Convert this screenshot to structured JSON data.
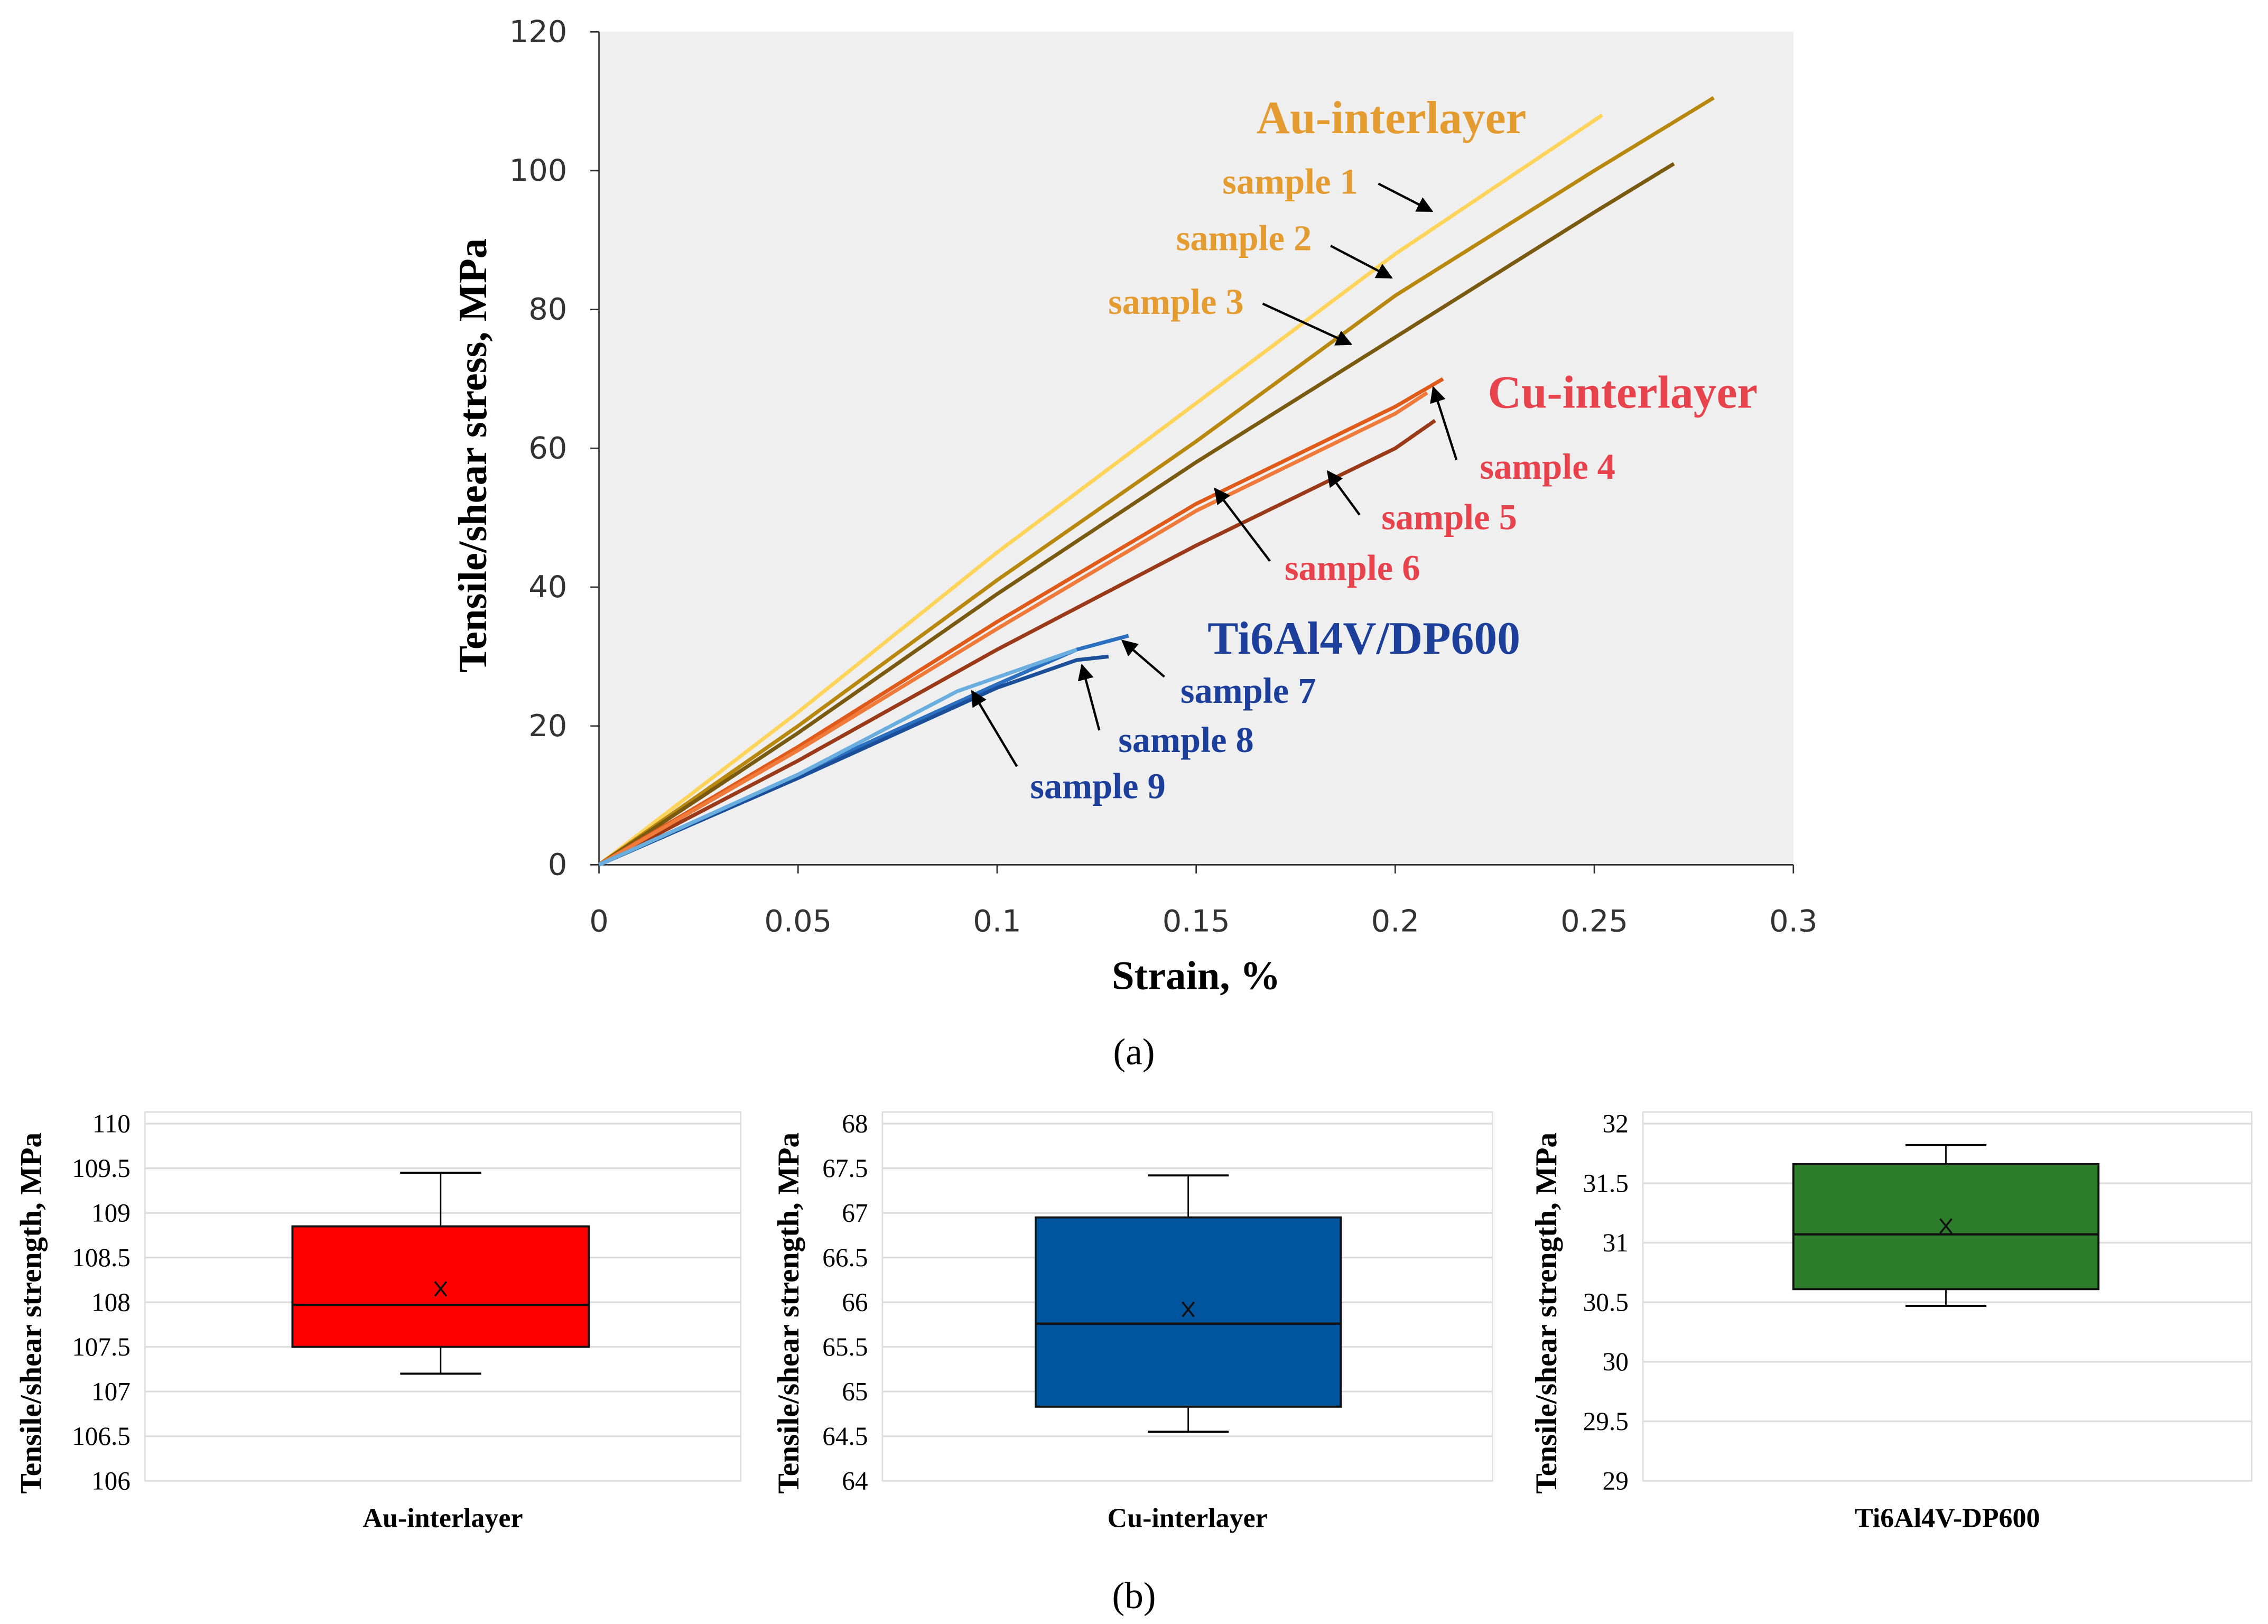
{
  "chart_data": [
    {
      "type": "line",
      "panel_label": "(a)",
      "xlabel": "Strain, %",
      "ylabel": "Tensile/shear stress, MPa",
      "xlim": [
        0,
        0.3
      ],
      "ylim": [
        0,
        120
      ],
      "xticks": [
        "0",
        "0.05",
        "0.1",
        "0.15",
        "0.2",
        "0.25",
        "0.3"
      ],
      "yticks": [
        "0",
        "20",
        "40",
        "60",
        "80",
        "100",
        "120"
      ],
      "grid": false,
      "groups": [
        {
          "name": "Au-interlayer",
          "color": "#e49b2f"
        },
        {
          "name": "Cu-interlayer",
          "color": "#e8424c"
        },
        {
          "name": "Ti6Al4V/DP600",
          "color": "#1d3f9c"
        }
      ],
      "series": [
        {
          "name": "sample 1",
          "group": "Au-interlayer",
          "color": "#ffd45a",
          "points": [
            [
              0,
              0
            ],
            [
              0.05,
              22
            ],
            [
              0.1,
              45
            ],
            [
              0.15,
              66.5
            ],
            [
              0.2,
              88
            ],
            [
              0.252,
              108
            ]
          ]
        },
        {
          "name": "sample 2",
          "group": "Au-interlayer",
          "color": "#b8880e",
          "points": [
            [
              0,
              0
            ],
            [
              0.05,
              20
            ],
            [
              0.1,
              41
            ],
            [
              0.15,
              61
            ],
            [
              0.2,
              82
            ],
            [
              0.25,
              100
            ],
            [
              0.28,
              110.5
            ]
          ]
        },
        {
          "name": "sample 3",
          "group": "Au-interlayer",
          "color": "#7a5a10",
          "points": [
            [
              0,
              0
            ],
            [
              0.05,
              19
            ],
            [
              0.1,
              39
            ],
            [
              0.15,
              58
            ],
            [
              0.2,
              76
            ],
            [
              0.25,
              94
            ],
            [
              0.27,
              101
            ]
          ]
        },
        {
          "name": "sample 4",
          "group": "Cu-interlayer",
          "color": "#e05a1a",
          "points": [
            [
              0,
              0
            ],
            [
              0.05,
              17
            ],
            [
              0.1,
              35
            ],
            [
              0.15,
              52
            ],
            [
              0.2,
              66
            ],
            [
              0.212,
              70
            ]
          ]
        },
        {
          "name": "sample 5",
          "group": "Cu-interlayer",
          "color": "#9a3a18",
          "points": [
            [
              0,
              0
            ],
            [
              0.05,
              15
            ],
            [
              0.1,
              31
            ],
            [
              0.15,
              46
            ],
            [
              0.2,
              60
            ],
            [
              0.21,
              64
            ]
          ]
        },
        {
          "name": "sample 6",
          "group": "Cu-interlayer",
          "color": "#f07a3a",
          "points": [
            [
              0,
              0
            ],
            [
              0.05,
              16.5
            ],
            [
              0.1,
              34
            ],
            [
              0.15,
              51
            ],
            [
              0.2,
              65
            ],
            [
              0.208,
              68
            ]
          ]
        },
        {
          "name": "sample 7",
          "group": "Ti6Al4V/DP600",
          "color": "#2a6fc0",
          "points": [
            [
              0,
              0
            ],
            [
              0.05,
              13
            ],
            [
              0.1,
              26
            ],
            [
              0.12,
              31
            ],
            [
              0.133,
              33
            ]
          ]
        },
        {
          "name": "sample 8",
          "group": "Ti6Al4V/DP600",
          "color": "#1b4f9a",
          "points": [
            [
              0,
              0
            ],
            [
              0.05,
              12.5
            ],
            [
              0.1,
              25.5
            ],
            [
              0.12,
              29.5
            ],
            [
              0.128,
              30
            ]
          ]
        },
        {
          "name": "sample 9",
          "group": "Ti6Al4V/DP600",
          "color": "#6aaee0",
          "points": [
            [
              0,
              0
            ],
            [
              0.05,
              13
            ],
            [
              0.09,
              25
            ],
            [
              0.12,
              31
            ]
          ]
        }
      ]
    },
    {
      "type": "box",
      "panel_label": "(b)",
      "ylabel": "Tensile/shear strength, MPa",
      "panels": [
        {
          "category": "Au-interlayer",
          "color": "#ff0000",
          "ylim": [
            106,
            110
          ],
          "yticks": [
            "106",
            "106.5",
            "107",
            "107.5",
            "108",
            "108.5",
            "109",
            "109.5",
            "110"
          ],
          "min": 107.2,
          "q1": 107.5,
          "median": 107.97,
          "q3": 108.85,
          "max": 109.45,
          "mean": 108.15
        },
        {
          "category": "Cu-interlayer",
          "color": "#00559e",
          "ylim": [
            64,
            68
          ],
          "yticks": [
            "64",
            "64.5",
            "65",
            "65.5",
            "66",
            "66.5",
            "67",
            "67.5",
            "68"
          ],
          "min": 64.55,
          "q1": 64.83,
          "median": 65.76,
          "q3": 66.95,
          "max": 67.42,
          "mean": 65.92
        },
        {
          "category": "Ti6Al4V-DP600",
          "color": "#2e7d2a",
          "ylim": [
            29,
            32
          ],
          "yticks": [
            "29",
            "29.5",
            "30",
            "30.5",
            "31",
            "31.5",
            "32"
          ],
          "min": 30.47,
          "q1": 30.61,
          "median": 31.07,
          "q3": 31.66,
          "max": 31.82,
          "mean": 31.14
        }
      ]
    }
  ]
}
